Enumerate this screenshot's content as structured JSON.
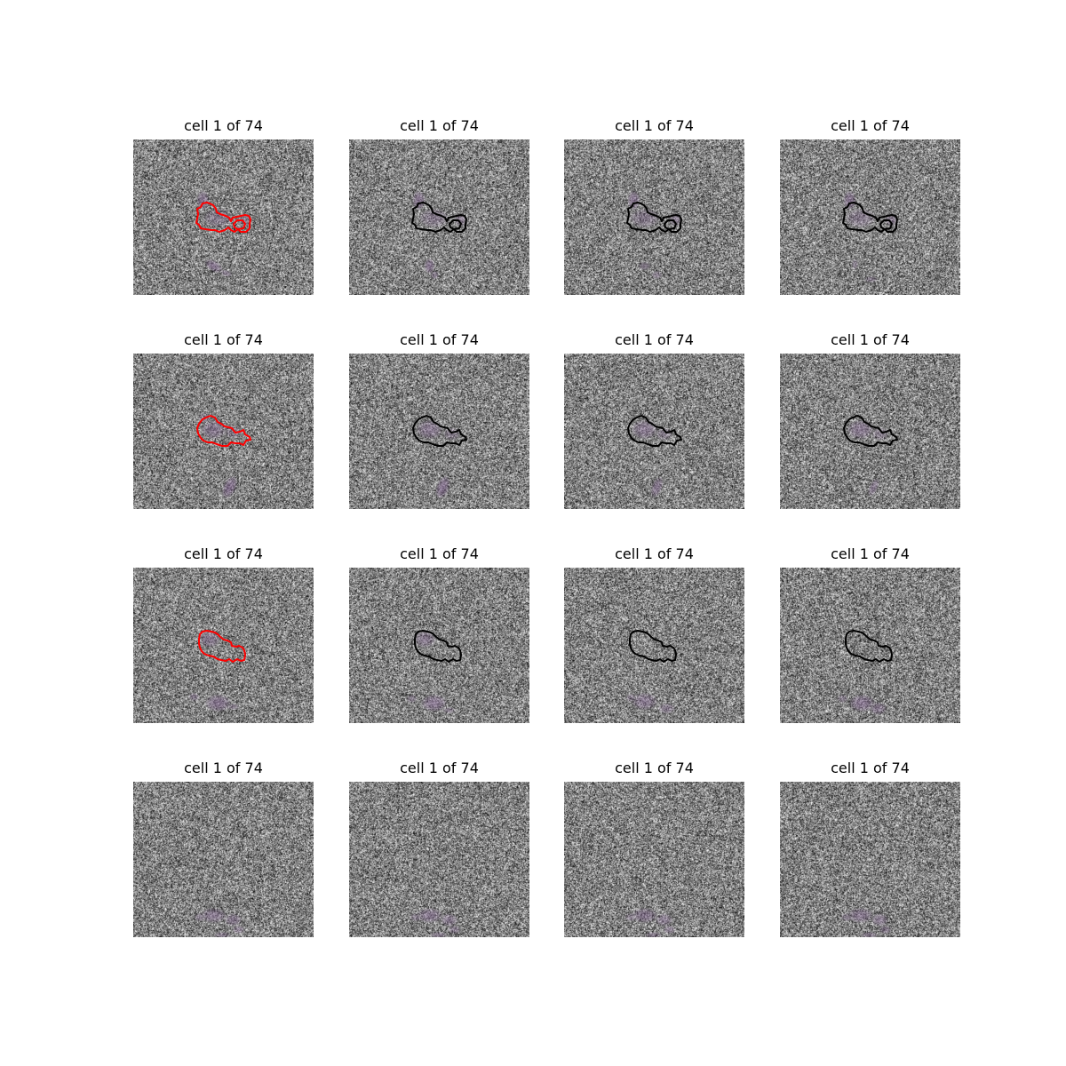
{
  "figure": {
    "panels": [
      {
        "title": "cell 1 of 74",
        "outline_color": "#ff0000",
        "outline": "A",
        "blobs": "A1"
      },
      {
        "title": "cell 1 of 74",
        "outline_color": "#000000",
        "outline": "A",
        "blobs": "A2"
      },
      {
        "title": "cell 1 of 74",
        "outline_color": "#000000",
        "outline": "A",
        "blobs": "A3"
      },
      {
        "title": "cell 1 of 74",
        "outline_color": "#000000",
        "outline": "A",
        "blobs": "A4"
      },
      {
        "title": "cell 1 of 74",
        "outline_color": "#ff0000",
        "outline": "B",
        "blobs": "B1"
      },
      {
        "title": "cell 1 of 74",
        "outline_color": "#000000",
        "outline": "B",
        "blobs": "B2"
      },
      {
        "title": "cell 1 of 74",
        "outline_color": "#000000",
        "outline": "B",
        "blobs": "B3"
      },
      {
        "title": "cell 1 of 74",
        "outline_color": "#000000",
        "outline": "B",
        "blobs": "B4"
      },
      {
        "title": "cell 1 of 74",
        "outline_color": "#ff0000",
        "outline": "C",
        "blobs": "C1"
      },
      {
        "title": "cell 1 of 74",
        "outline_color": "#000000",
        "outline": "C",
        "blobs": "C2"
      },
      {
        "title": "cell 1 of 74",
        "outline_color": "#000000",
        "outline": "C",
        "blobs": "C3"
      },
      {
        "title": "cell 1 of 74",
        "outline_color": "#000000",
        "outline": "C",
        "blobs": "C4"
      },
      {
        "title": "cell 1 of 74",
        "outline_color": "",
        "outline": "",
        "blobs": "D"
      },
      {
        "title": "cell 1 of 74",
        "outline_color": "",
        "outline": "",
        "blobs": "D"
      },
      {
        "title": "cell 1 of 74",
        "outline_color": "",
        "outline": "",
        "blobs": "D"
      },
      {
        "title": "cell 1 of 74",
        "outline_color": "",
        "outline": "",
        "blobs": "D"
      }
    ],
    "tint_color": "#8a6a9a"
  }
}
